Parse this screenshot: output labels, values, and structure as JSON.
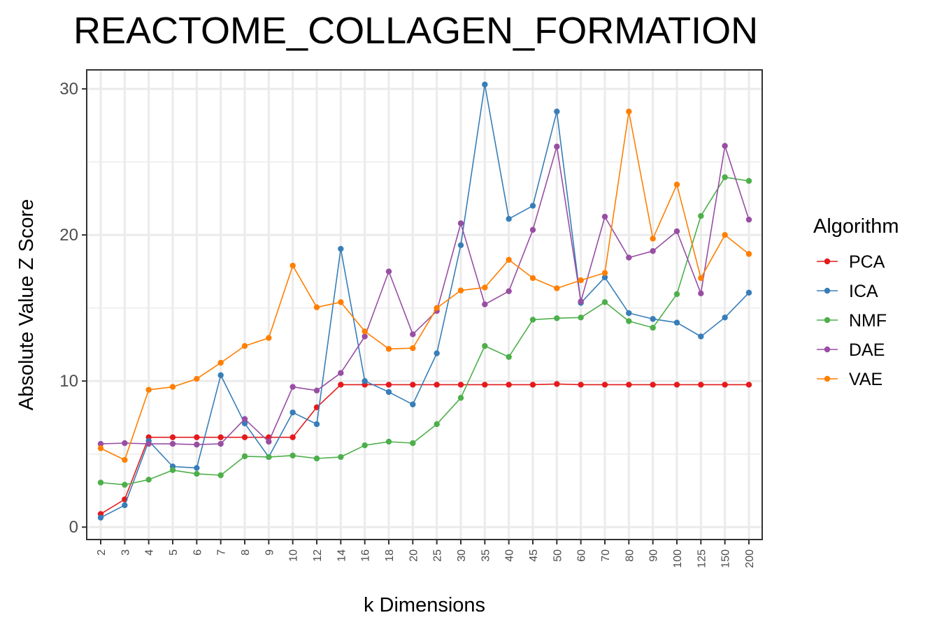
{
  "chart_data": {
    "type": "line",
    "title": "REACTOME_COLLAGEN_FORMATION",
    "xlabel": "k Dimensions",
    "ylabel": "Absolute Value Z Score",
    "categories": [
      "2",
      "3",
      "4",
      "5",
      "6",
      "7",
      "8",
      "9",
      "10",
      "12",
      "14",
      "16",
      "18",
      "20",
      "25",
      "30",
      "35",
      "40",
      "45",
      "50",
      "60",
      "70",
      "80",
      "90",
      "100",
      "125",
      "150",
      "200"
    ],
    "ylim": [
      -0.85,
      31.3
    ],
    "yticks": [
      0,
      10,
      20,
      30
    ],
    "grid": true,
    "legend": {
      "title": "Algorithm",
      "position": "right"
    },
    "series": [
      {
        "name": "PCA",
        "color": "#E41A1C",
        "values": [
          0.9,
          1.9,
          6.15,
          6.15,
          6.15,
          6.15,
          6.15,
          6.15,
          6.15,
          8.2,
          9.75,
          9.75,
          9.75,
          9.75,
          9.75,
          9.75,
          9.75,
          9.75,
          9.75,
          9.8,
          9.75,
          9.75,
          9.75,
          9.75,
          9.75,
          9.75,
          9.75,
          9.75
        ]
      },
      {
        "name": "ICA",
        "color": "#377EB8",
        "values": [
          0.65,
          1.5,
          5.9,
          4.15,
          4.05,
          10.4,
          7.1,
          4.8,
          7.85,
          7.05,
          19.05,
          10.0,
          9.25,
          8.4,
          11.9,
          19.3,
          30.3,
          21.1,
          22.0,
          28.45,
          15.35,
          17.1,
          14.65,
          14.25,
          14.0,
          13.05,
          14.35,
          16.05
        ]
      },
      {
        "name": "NMF",
        "color": "#4DAF4A",
        "values": [
          3.05,
          2.9,
          3.25,
          3.9,
          3.65,
          3.55,
          4.85,
          4.8,
          4.9,
          4.7,
          4.8,
          5.6,
          5.85,
          5.75,
          7.05,
          8.85,
          12.4,
          11.65,
          14.2,
          14.3,
          14.35,
          15.4,
          14.1,
          13.65,
          15.95,
          21.3,
          23.95,
          23.7
        ]
      },
      {
        "name": "DAE",
        "color": "#984EA3",
        "values": [
          5.7,
          5.75,
          5.7,
          5.7,
          5.65,
          5.7,
          7.4,
          5.85,
          9.6,
          9.35,
          10.55,
          13.05,
          17.5,
          13.2,
          14.8,
          20.8,
          15.25,
          16.15,
          20.35,
          26.05,
          15.45,
          21.25,
          18.45,
          18.9,
          20.25,
          16.0,
          26.1,
          21.05
        ]
      },
      {
        "name": "VAE",
        "color": "#FF7F00",
        "values": [
          5.4,
          4.6,
          9.4,
          9.6,
          10.15,
          11.25,
          12.4,
          12.95,
          17.9,
          15.05,
          15.4,
          13.4,
          12.2,
          12.25,
          15.0,
          16.2,
          16.4,
          18.3,
          17.05,
          16.35,
          16.9,
          17.4,
          28.45,
          19.75,
          23.45,
          17.05,
          20.0,
          18.7
        ]
      }
    ]
  }
}
